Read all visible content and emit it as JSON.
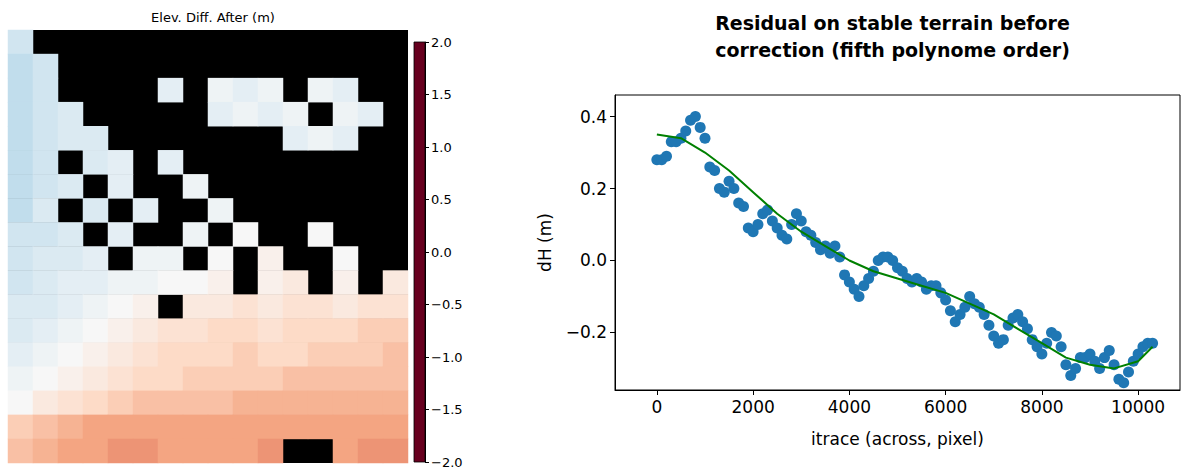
{
  "chart_data": [
    {
      "type": "heatmap",
      "title": "Elev. Diff. After (m)",
      "tick_labels": false,
      "cells": [
        [
          0.4,
          null,
          null,
          null,
          null,
          null,
          null,
          null,
          null,
          null,
          null,
          null,
          null,
          null,
          null,
          null
        ],
        [
          0.5,
          0.4,
          null,
          null,
          null,
          null,
          null,
          null,
          null,
          null,
          null,
          null,
          null,
          null,
          null,
          null
        ],
        [
          0.5,
          0.4,
          null,
          null,
          null,
          null,
          0.2,
          null,
          0.1,
          0.2,
          0.1,
          null,
          0.1,
          0.2,
          null,
          null
        ],
        [
          0.5,
          0.4,
          0.3,
          null,
          null,
          null,
          null,
          null,
          0.2,
          0.1,
          0.2,
          0.1,
          null,
          0.1,
          0.2,
          null
        ],
        [
          0.5,
          0.4,
          0.3,
          0.3,
          null,
          null,
          null,
          null,
          null,
          null,
          null,
          0.2,
          0.1,
          0.2,
          null,
          null
        ],
        [
          0.5,
          0.4,
          null,
          0.3,
          0.2,
          null,
          0.2,
          null,
          null,
          null,
          null,
          null,
          null,
          null,
          null,
          null
        ],
        [
          0.5,
          0.4,
          0.3,
          null,
          0.2,
          null,
          null,
          0.1,
          null,
          null,
          null,
          null,
          null,
          null,
          null,
          null
        ],
        [
          0.5,
          0.3,
          null,
          0.3,
          null,
          0.2,
          null,
          null,
          0.1,
          null,
          null,
          null,
          null,
          null,
          null,
          null
        ],
        [
          0.4,
          0.4,
          0.3,
          null,
          0.2,
          null,
          null,
          0.1,
          null,
          0,
          null,
          null,
          0,
          null,
          null,
          null
        ],
        [
          0.4,
          0.3,
          0.3,
          0.2,
          null,
          0.1,
          0.1,
          null,
          0,
          null,
          -0.1,
          null,
          null,
          0,
          null,
          null
        ],
        [
          0.4,
          0.3,
          0.2,
          0.2,
          0.1,
          0.1,
          0,
          0,
          -0.1,
          null,
          -0.1,
          -0.2,
          null,
          -0.1,
          null,
          -0.2
        ],
        [
          0.3,
          0.3,
          0.2,
          0.1,
          0,
          -0.1,
          null,
          -0.2,
          -0.2,
          -0.3,
          -0.2,
          -0.3,
          -0.3,
          -0.2,
          -0.3,
          -0.3
        ],
        [
          0.3,
          0.2,
          0.1,
          0,
          -0.1,
          -0.2,
          -0.3,
          -0.3,
          -0.4,
          -0.4,
          -0.3,
          -0.4,
          -0.4,
          -0.4,
          -0.5,
          -0.5
        ],
        [
          0.2,
          0.1,
          0,
          -0.1,
          -0.2,
          -0.3,
          -0.4,
          -0.4,
          -0.4,
          -0.5,
          -0.4,
          -0.4,
          -0.5,
          -0.5,
          -0.5,
          -0.6
        ],
        [
          0.1,
          0,
          -0.1,
          -0.2,
          -0.3,
          -0.4,
          -0.4,
          -0.5,
          -0.5,
          -0.5,
          -0.5,
          -0.6,
          -0.6,
          -0.6,
          -0.6,
          -0.6
        ],
        [
          0,
          -0.2,
          -0.3,
          -0.4,
          -0.5,
          -0.6,
          -0.6,
          -0.6,
          -0.6,
          -0.7,
          -0.7,
          -0.7,
          -0.7,
          -0.7,
          -0.7,
          -0.7
        ],
        [
          -0.5,
          -0.6,
          -0.7,
          -0.8,
          -0.8,
          -0.8,
          -0.8,
          -0.8,
          -0.8,
          -0.8,
          -0.8,
          -0.8,
          -0.8,
          -0.8,
          -0.8,
          -0.8
        ],
        [
          -0.6,
          -0.7,
          -0.8,
          -0.8,
          -0.9,
          -0.9,
          -0.8,
          -0.8,
          -0.8,
          -0.8,
          -0.9,
          null,
          null,
          -0.8,
          -0.9,
          -0.9
        ]
      ],
      "clim": [
        -2,
        2
      ],
      "cticks": [
        {
          "value": -2,
          "label": "−2.0"
        },
        {
          "value": -1.5,
          "label": "−1.5"
        },
        {
          "value": -1,
          "label": "−1.0"
        },
        {
          "value": -0.5,
          "label": "−0.5"
        },
        {
          "value": 0,
          "label": "0.0"
        },
        0.5,
        {
          "value": 1,
          "label": "1.0"
        },
        1.5,
        {
          "value": 2,
          "label": "2.0"
        }
      ]
    },
    {
      "type": "scatter",
      "title": "Residual on stable terrain before correction (fifth polynome order)",
      "x_label": "itrace (across, pixel)",
      "y_label": "dH (m)",
      "xlim": [
        -870,
        10870
      ],
      "xticks": [
        0,
        2000,
        4000,
        6000,
        8000,
        10000
      ],
      "ylim": [
        -0.36,
        0.46
      ],
      "yticks": [
        {
          "value": -0.2,
          "label": "−0.2"
        },
        {
          "value": 0,
          "label": "0.0"
        },
        0.2,
        0.4
      ],
      "grid": false,
      "series": [
        {
          "type": "scatter",
          "color": "#1f77b4",
          "marker": "circle",
          "x": [
            0,
            100,
            200,
            300,
            400,
            500,
            600,
            700,
            800,
            900,
            1000,
            1100,
            1200,
            1300,
            1400,
            1500,
            1600,
            1700,
            1800,
            1900,
            2000,
            2100,
            2200,
            2300,
            2400,
            2500,
            2600,
            2700,
            2800,
            2900,
            3000,
            3100,
            3200,
            3300,
            3400,
            3500,
            3600,
            3700,
            3800,
            3900,
            4000,
            4100,
            4200,
            4300,
            4400,
            4500,
            4600,
            4700,
            4800,
            4900,
            5000,
            5100,
            5200,
            5300,
            5400,
            5500,
            5600,
            5700,
            5800,
            5900,
            6000,
            6100,
            6200,
            6300,
            6400,
            6500,
            6600,
            6700,
            6800,
            6900,
            7000,
            7100,
            7200,
            7300,
            7400,
            7500,
            7600,
            7700,
            7800,
            7900,
            8000,
            8100,
            8200,
            8300,
            8400,
            8500,
            8600,
            8700,
            8800,
            8900,
            9000,
            9100,
            9200,
            9300,
            9400,
            9500,
            9600,
            9700,
            9800,
            9900,
            10000,
            10100,
            10200,
            10300
          ],
          "values": [
            0.28,
            0.28,
            0.29,
            0.33,
            0.33,
            0.34,
            0.36,
            0.39,
            0.4,
            0.37,
            0.34,
            0.26,
            0.25,
            0.2,
            0.19,
            0.22,
            0.2,
            0.16,
            0.15,
            0.09,
            0.08,
            0.1,
            0.13,
            0.14,
            0.11,
            0.09,
            0.07,
            0.06,
            0.1,
            0.13,
            0.11,
            0.08,
            0.07,
            0.05,
            0.03,
            0.04,
            0.02,
            0.04,
            0.01,
            -0.04,
            -0.06,
            -0.08,
            -0.1,
            -0.07,
            -0.05,
            -0.03,
            0.0,
            0.01,
            0.01,
            0.0,
            -0.02,
            -0.03,
            -0.05,
            -0.06,
            -0.05,
            -0.06,
            -0.08,
            -0.07,
            -0.07,
            -0.09,
            -0.11,
            -0.14,
            -0.17,
            -0.15,
            -0.13,
            -0.1,
            -0.12,
            -0.13,
            -0.15,
            -0.18,
            -0.21,
            -0.23,
            -0.22,
            -0.18,
            -0.16,
            -0.15,
            -0.17,
            -0.19,
            -0.22,
            -0.24,
            -0.26,
            -0.23,
            -0.2,
            -0.21,
            -0.24,
            -0.29,
            -0.32,
            -0.3,
            -0.27,
            -0.27,
            -0.26,
            -0.28,
            -0.3,
            -0.27,
            -0.25,
            -0.29,
            -0.33,
            -0.34,
            -0.31,
            -0.28,
            -0.26,
            -0.24,
            -0.23,
            -0.23
          ]
        },
        {
          "type": "line",
          "color": "#008000",
          "line_style": "solid",
          "x": [
            0,
            500,
            1000,
            1500,
            2000,
            2500,
            3000,
            3500,
            4000,
            4500,
            5000,
            5500,
            6000,
            6500,
            7000,
            7500,
            8000,
            8500,
            9000,
            9500,
            10000,
            10300
          ],
          "values": [
            0.35,
            0.34,
            0.3,
            0.25,
            0.19,
            0.13,
            0.08,
            0.04,
            0.0,
            -0.03,
            -0.05,
            -0.07,
            -0.09,
            -0.12,
            -0.15,
            -0.19,
            -0.23,
            -0.27,
            -0.29,
            -0.3,
            -0.28,
            -0.24
          ]
        }
      ]
    }
  ]
}
